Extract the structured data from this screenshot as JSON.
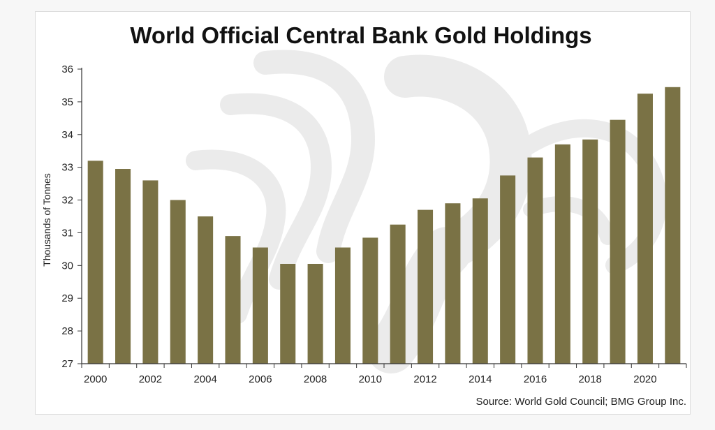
{
  "colors": {
    "bar": "#7a7245",
    "axis": "#333333",
    "watermark": "#ebebeb"
  },
  "watermark_icon": "griffin-logo-icon",
  "chart_data": {
    "type": "bar",
    "title": "World Official Central Bank Gold Holdings",
    "ylabel": "Thousands of Tonnes",
    "xlabel": "",
    "ylim": [
      27,
      36
    ],
    "yticks": [
      27,
      28,
      29,
      30,
      31,
      32,
      33,
      34,
      35,
      36
    ],
    "categories": [
      "2000",
      "2001",
      "2002",
      "2003",
      "2004",
      "2005",
      "2006",
      "2007",
      "2008",
      "2009",
      "2010",
      "2011",
      "2012",
      "2013",
      "2014",
      "2015",
      "2016",
      "2017",
      "2018",
      "2019",
      "2020",
      "2021"
    ],
    "xtick_labels": [
      "2000",
      "2002",
      "2004",
      "2006",
      "2008",
      "2010",
      "2012",
      "2014",
      "2016",
      "2018",
      "2020"
    ],
    "values": [
      33.2,
      32.95,
      32.6,
      32.0,
      31.5,
      30.9,
      30.55,
      30.05,
      30.05,
      30.55,
      30.85,
      31.25,
      31.7,
      31.9,
      32.05,
      32.75,
      33.3,
      33.7,
      33.85,
      34.45,
      35.25,
      35.45
    ],
    "grid": false,
    "legend": "none",
    "source": "Source: World Gold Council; BMG Group Inc."
  }
}
